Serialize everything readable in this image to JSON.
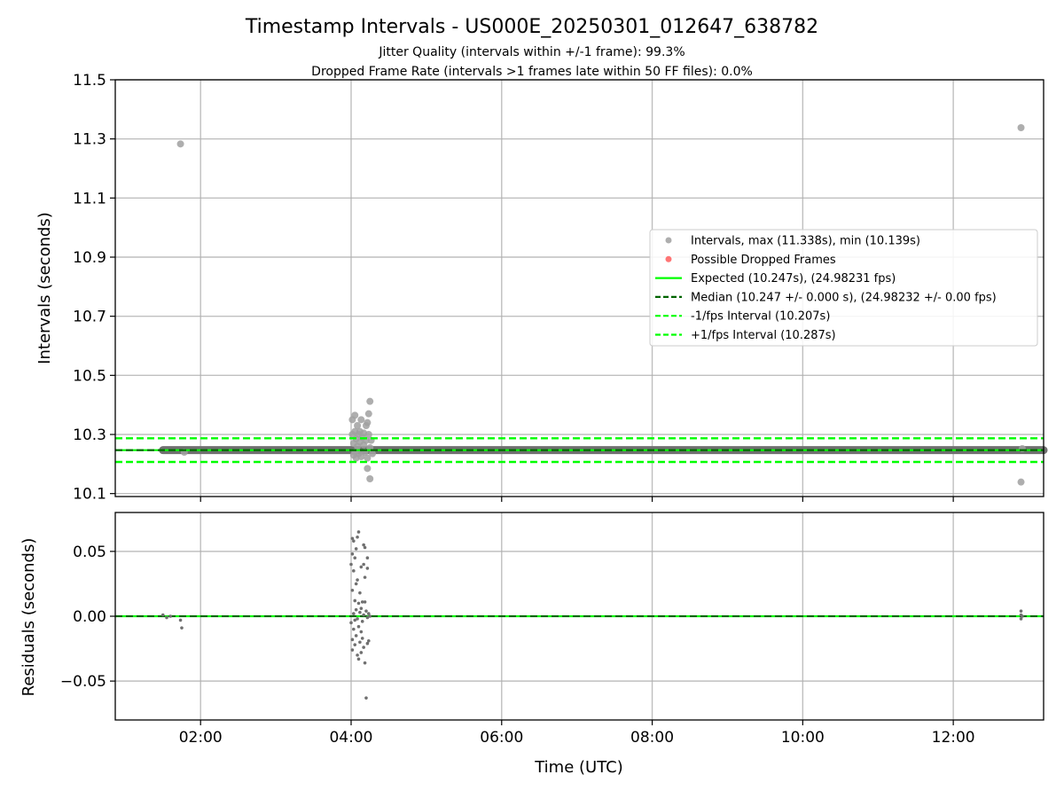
{
  "chart_data": [
    {
      "type": "scatter",
      "panel": "intervals",
      "title": "Timestamp Intervals - US000E_20250301_012647_638782",
      "subtitle_lines": [
        "Jitter Quality (intervals within +/-1 frame): 99.3%",
        "Dropped Frame Rate (intervals >1 frames late within 50 FF files): 0.0%"
      ],
      "ylabel": "Intervals (seconds)",
      "xlim": [
        "00:52",
        "13:12"
      ],
      "ylim": [
        10.09,
        11.5
      ],
      "yticks": [
        10.1,
        10.3,
        10.5,
        10.7,
        10.9,
        11.1,
        11.3,
        11.5
      ],
      "ytick_labels": [
        "10.1",
        "10.3",
        "10.5",
        "10.7",
        "10.9",
        "11.1",
        "11.3",
        "11.5"
      ],
      "xticks": [
        "02:00",
        "04:00",
        "06:00",
        "08:00",
        "10:00",
        "12:00"
      ],
      "grid": true,
      "legend_position": "center-right",
      "legend": [
        {
          "label": "Intervals, max (11.338s), min (10.139s)",
          "kind": "marker",
          "color": "#a0a0a0"
        },
        {
          "label": "Possible Dropped Frames",
          "kind": "marker",
          "color": "#ff6666"
        },
        {
          "label": "Expected (10.247s), (24.98231 fps)",
          "kind": "solid",
          "color": "#00ff00"
        },
        {
          "label": "Median (10.247 +/- 0.000 s), (24.98232 +/- 0.00 fps)",
          "kind": "dashed",
          "color": "#006400"
        },
        {
          "label": "-1/fps Interval (10.207s)",
          "kind": "dashed",
          "color": "#00ff00"
        },
        {
          "label": "+1/fps Interval (10.287s)",
          "kind": "dashed",
          "color": "#00ff00"
        }
      ],
      "reference_lines": {
        "expected": 10.247,
        "median": 10.247,
        "minus_one_frame": 10.207,
        "plus_one_frame": 10.287
      },
      "baseline_band": {
        "x_start": "01:30",
        "x_end": "13:12",
        "y": 10.247
      },
      "series": [
        {
          "name": "Intervals",
          "color": "#a0a0a0",
          "points": [
            {
              "x": "01:44",
              "y": 11.283
            },
            {
              "x": "01:47",
              "y": 10.24
            },
            {
              "x": "04:01",
              "y": 10.3
            },
            {
              "x": "04:01",
              "y": 10.35
            },
            {
              "x": "04:02",
              "y": 10.27
            },
            {
              "x": "04:02",
              "y": 10.23
            },
            {
              "x": "04:03",
              "y": 10.365
            },
            {
              "x": "04:03",
              "y": 10.31
            },
            {
              "x": "04:03",
              "y": 10.24
            },
            {
              "x": "04:04",
              "y": 10.285
            },
            {
              "x": "04:04",
              "y": 10.22
            },
            {
              "x": "04:05",
              "y": 10.33
            },
            {
              "x": "04:05",
              "y": 10.26
            },
            {
              "x": "04:06",
              "y": 10.3
            },
            {
              "x": "04:06",
              "y": 10.235
            },
            {
              "x": "04:07",
              "y": 10.275
            },
            {
              "x": "04:07",
              "y": 10.31
            },
            {
              "x": "04:08",
              "y": 10.35
            },
            {
              "x": "04:08",
              "y": 10.225
            },
            {
              "x": "04:09",
              "y": 10.29
            },
            {
              "x": "04:10",
              "y": 10.265
            },
            {
              "x": "04:10",
              "y": 10.305
            },
            {
              "x": "04:11",
              "y": 10.24
            },
            {
              "x": "04:12",
              "y": 10.33
            },
            {
              "x": "04:12",
              "y": 10.28
            },
            {
              "x": "04:13",
              "y": 10.22
            },
            {
              "x": "04:13",
              "y": 10.34
            },
            {
              "x": "04:13",
              "y": 10.185
            },
            {
              "x": "04:14",
              "y": 10.37
            },
            {
              "x": "04:14",
              "y": 10.3
            },
            {
              "x": "04:15",
              "y": 10.255
            },
            {
              "x": "04:15",
              "y": 10.15
            },
            {
              "x": "04:15",
              "y": 10.412
            },
            {
              "x": "04:16",
              "y": 10.28
            },
            {
              "x": "04:17",
              "y": 10.235
            },
            {
              "x": "12:54",
              "y": 11.338
            },
            {
              "x": "12:54",
              "y": 10.139
            },
            {
              "x": "12:55",
              "y": 10.252
            }
          ]
        }
      ]
    },
    {
      "type": "scatter",
      "panel": "residuals",
      "xlabel": "Time (UTC)",
      "ylabel": "Residuals (seconds)",
      "xlim": [
        "00:52",
        "13:12"
      ],
      "ylim": [
        -0.08,
        0.08
      ],
      "yticks": [
        -0.05,
        0.0,
        0.05
      ],
      "ytick_labels": [
        "−0.05",
        "0.00",
        "0.05"
      ],
      "xticks": [
        "02:00",
        "04:00",
        "06:00",
        "08:00",
        "10:00",
        "12:00"
      ],
      "xtick_labels": [
        "02:00",
        "04:00",
        "06:00",
        "08:00",
        "10:00",
        "12:00"
      ],
      "grid": true,
      "reference_lines": {
        "zero_solid": 0.0,
        "zero_dashed": 0.0
      },
      "series": [
        {
          "name": "Residuals",
          "color": "#707070",
          "points": [
            {
              "x": "01:30",
              "y": 0.001
            },
            {
              "x": "01:33",
              "y": -0.001
            },
            {
              "x": "01:36",
              "y": 0.0
            },
            {
              "x": "01:44",
              "y": -0.003
            },
            {
              "x": "01:45",
              "y": -0.009
            },
            {
              "x": "04:00",
              "y": 0.04
            },
            {
              "x": "04:00",
              "y": -0.005
            },
            {
              "x": "04:01",
              "y": 0.06
            },
            {
              "x": "04:01",
              "y": 0.048
            },
            {
              "x": "04:01",
              "y": 0.02
            },
            {
              "x": "04:01",
              "y": -0.018
            },
            {
              "x": "04:01",
              "y": -0.026
            },
            {
              "x": "04:02",
              "y": 0.058
            },
            {
              "x": "04:02",
              "y": 0.035
            },
            {
              "x": "04:02",
              "y": 0.002
            },
            {
              "x": "04:02",
              "y": -0.01
            },
            {
              "x": "04:03",
              "y": 0.045
            },
            {
              "x": "04:03",
              "y": 0.012
            },
            {
              "x": "04:03",
              "y": -0.003
            },
            {
              "x": "04:03",
              "y": -0.022
            },
            {
              "x": "04:04",
              "y": 0.052
            },
            {
              "x": "04:04",
              "y": 0.025
            },
            {
              "x": "04:04",
              "y": 0.005
            },
            {
              "x": "04:04",
              "y": -0.015
            },
            {
              "x": "04:05",
              "y": 0.061
            },
            {
              "x": "04:05",
              "y": 0.028
            },
            {
              "x": "04:05",
              "y": -0.002
            },
            {
              "x": "04:05",
              "y": -0.03
            },
            {
              "x": "04:06",
              "y": 0.065
            },
            {
              "x": "04:06",
              "y": 0.01
            },
            {
              "x": "04:06",
              "y": -0.008
            },
            {
              "x": "04:06",
              "y": -0.033
            },
            {
              "x": "04:07",
              "y": 0.018
            },
            {
              "x": "04:07",
              "y": 0.003
            },
            {
              "x": "04:07",
              "y": -0.02
            },
            {
              "x": "04:08",
              "y": 0.038
            },
            {
              "x": "04:08",
              "y": 0.006
            },
            {
              "x": "04:08",
              "y": -0.012
            },
            {
              "x": "04:08",
              "y": -0.028
            },
            {
              "x": "04:09",
              "y": 0.011
            },
            {
              "x": "04:09",
              "y": -0.004
            },
            {
              "x": "04:09",
              "y": -0.017
            },
            {
              "x": "04:10",
              "y": 0.055
            },
            {
              "x": "04:10",
              "y": 0.04
            },
            {
              "x": "04:10",
              "y": 0.001
            },
            {
              "x": "04:10",
              "y": -0.024
            },
            {
              "x": "04:11",
              "y": 0.053
            },
            {
              "x": "04:11",
              "y": 0.03
            },
            {
              "x": "04:11",
              "y": 0.011
            },
            {
              "x": "04:11",
              "y": -0.036
            },
            {
              "x": "04:12",
              "y": 0.004
            },
            {
              "x": "04:12",
              "y": -0.063
            },
            {
              "x": "04:13",
              "y": 0.045
            },
            {
              "x": "04:13",
              "y": 0.037
            },
            {
              "x": "04:13",
              "y": -0.001
            },
            {
              "x": "04:13",
              "y": -0.021
            },
            {
              "x": "04:14",
              "y": 0.002
            },
            {
              "x": "04:14",
              "y": -0.019
            },
            {
              "x": "04:15",
              "y": 0.0
            },
            {
              "x": "12:54",
              "y": 0.004
            },
            {
              "x": "12:54",
              "y": 0.001
            },
            {
              "x": "12:54",
              "y": -0.002
            },
            {
              "x": "12:55",
              "y": 0.0
            }
          ]
        }
      ]
    }
  ]
}
